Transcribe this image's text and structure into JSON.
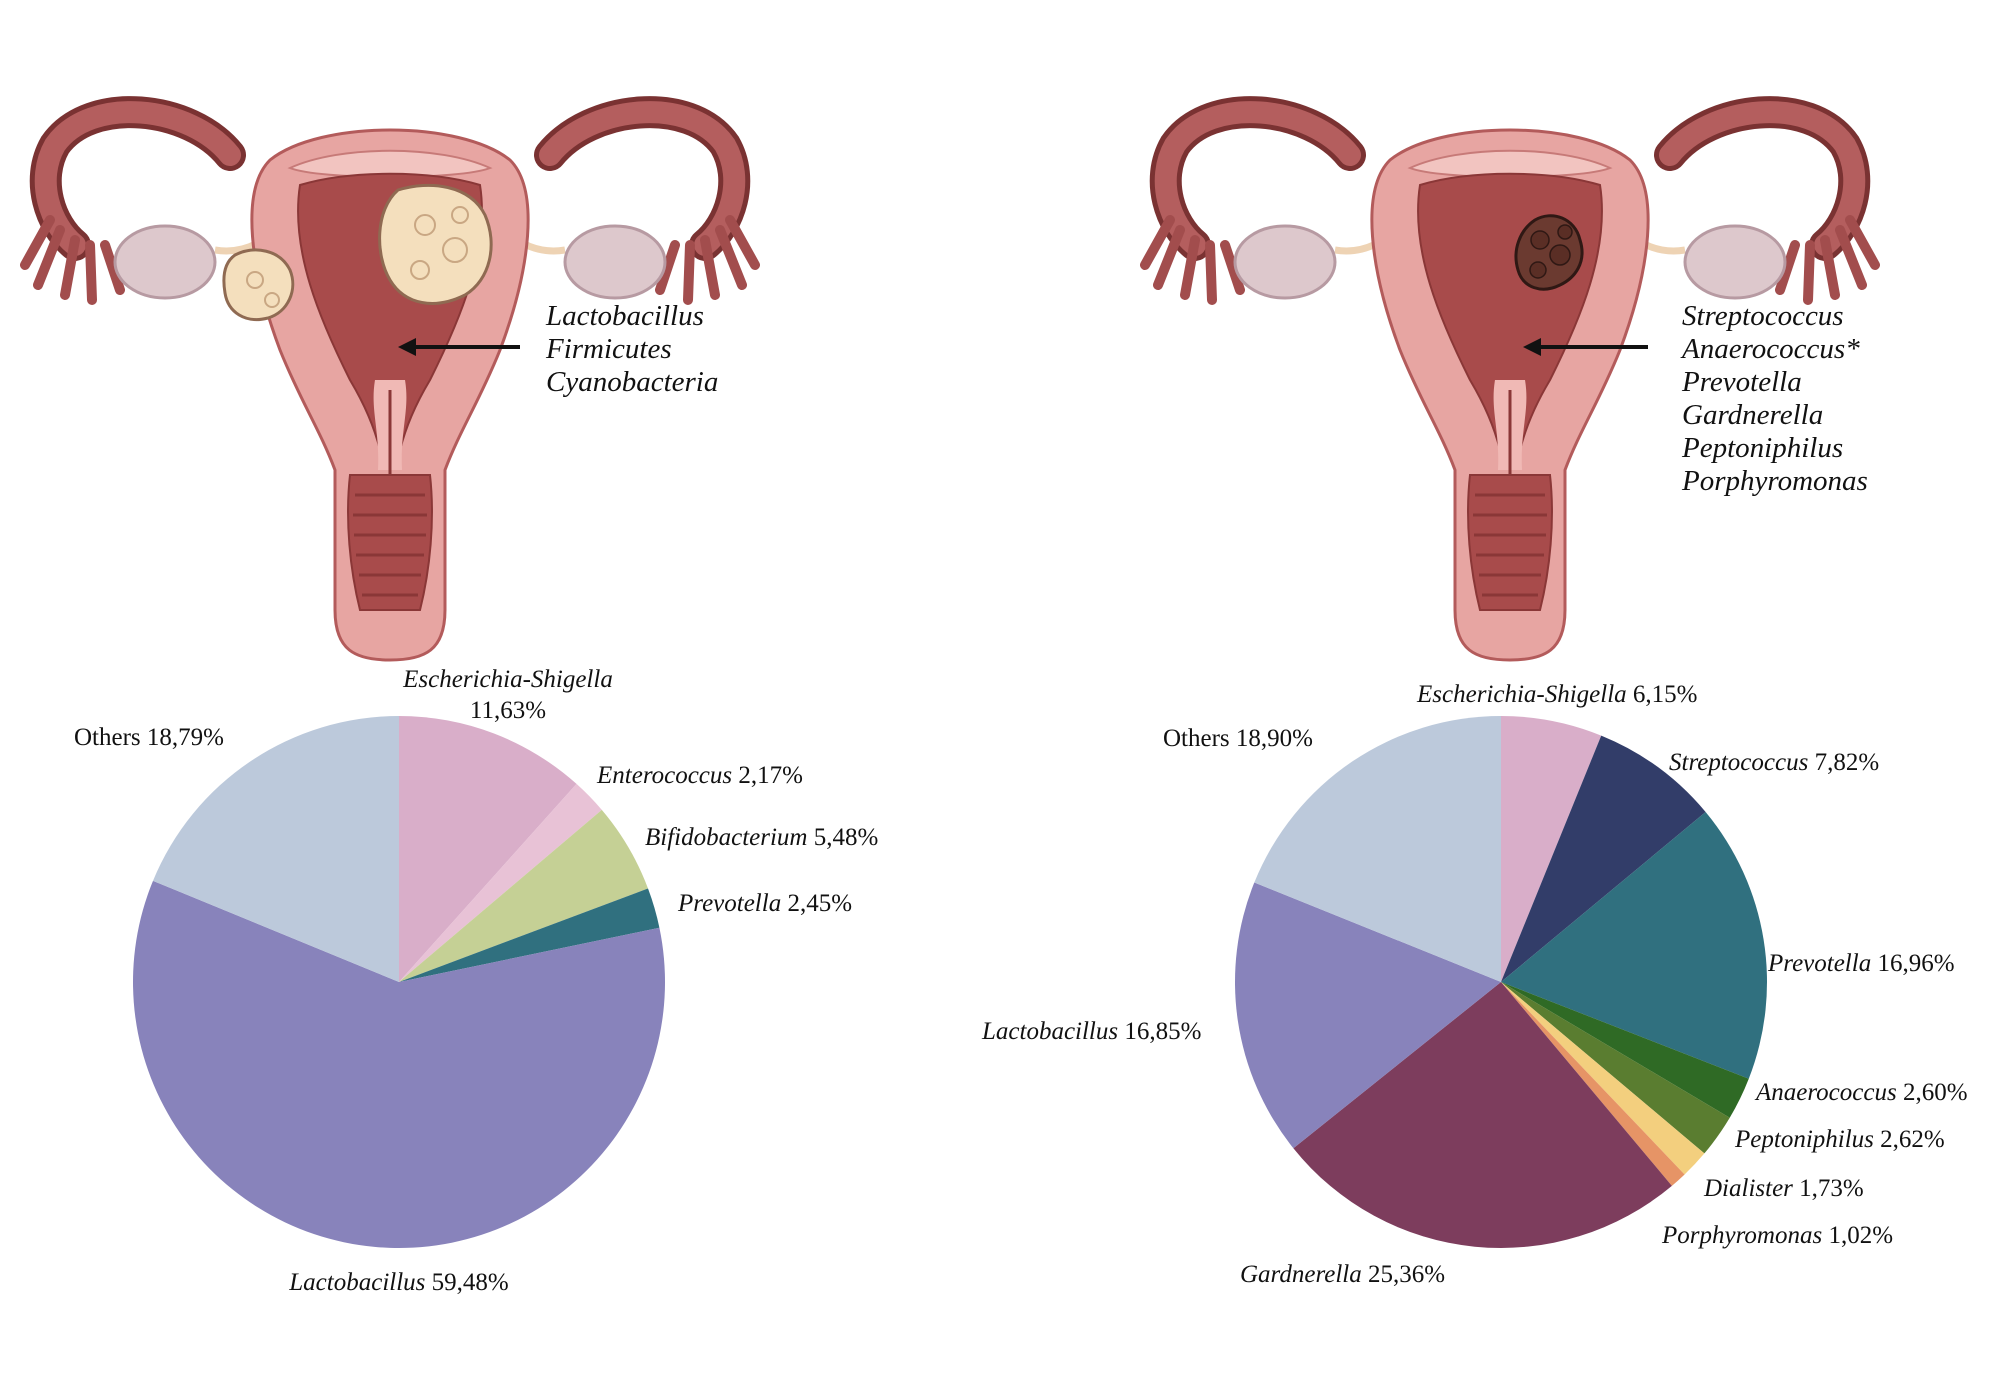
{
  "panels": [
    {
      "id": "left",
      "lesion": "fibroid",
      "bacteria": [
        "Lactobacillus",
        "Firmicutes",
        "Cyanobacteria"
      ]
    },
    {
      "id": "right",
      "lesion": "cancer",
      "bacteria": [
        "Streptococcus",
        "Anaerococcus*",
        "Prevotella",
        "Gardnerella",
        "Peptoniphilus",
        "Porphyromonas"
      ]
    }
  ],
  "chart_data": [
    {
      "type": "pie",
      "slices": [
        {
          "name": "Escherichia-Shigella",
          "value": 11.63,
          "label_italic": "Escherichia-Shigella",
          "label_value": "11,63%",
          "color": "#d9aec9"
        },
        {
          "name": "Enterococcus",
          "value": 2.17,
          "label_italic": "Enterococcus",
          "label_value": "2,17%",
          "color": "#e8c2d6"
        },
        {
          "name": "Bifidobacterium",
          "value": 5.48,
          "label_italic": "Bifidobacterium",
          "label_value": "5,48%",
          "color": "#c5d095"
        },
        {
          "name": "Prevotella",
          "value": 2.45,
          "label_italic": "Prevotella",
          "label_value": "2,45%",
          "color": "#30707f"
        },
        {
          "name": "Lactobacillus",
          "value": 59.48,
          "label_italic": "Lactobacillus",
          "label_value": "59,48%",
          "color": "#8883bb"
        },
        {
          "name": "Others",
          "value": 18.79,
          "label_italic": "",
          "label_value": "Others 18,79%",
          "color": "#bcc9db"
        }
      ]
    },
    {
      "type": "pie",
      "slices": [
        {
          "name": "Escherichia-Shigella",
          "value": 6.15,
          "label_italic": "Escherichia-Shigella",
          "label_value": "6,15%",
          "color": "#d9aec9"
        },
        {
          "name": "Streptococcus",
          "value": 7.82,
          "label_italic": "Streptococcus",
          "label_value": "7,82%",
          "color": "#323d69"
        },
        {
          "name": "Prevotella",
          "value": 16.96,
          "label_italic": "Prevotella",
          "label_value": "16,96%",
          "color": "#30707f"
        },
        {
          "name": "Anaerococcus",
          "value": 2.6,
          "label_italic": "Anaerococcus",
          "label_value": "2,60%",
          "color": "#2f6a25"
        },
        {
          "name": "Peptoniphilus",
          "value": 2.62,
          "label_italic": "Peptoniphilus",
          "label_value": "2,62%",
          "color": "#5a7d30"
        },
        {
          "name": "Dialister",
          "value": 1.73,
          "label_italic": "Dialister",
          "label_value": "1,73%",
          "color": "#f3cf7e"
        },
        {
          "name": "Porphyromonas",
          "value": 1.02,
          "label_italic": "Porphyromonas",
          "label_value": "1,02%",
          "color": "#e69466"
        },
        {
          "name": "Gardnerella",
          "value": 25.36,
          "label_italic": "Gardnerella",
          "label_value": "25,36%",
          "color": "#7d3d5d"
        },
        {
          "name": "Lactobacillus",
          "value": 16.85,
          "label_italic": "Lactobacillus",
          "label_value": "16,85%",
          "color": "#8883bb"
        },
        {
          "name": "Others",
          "value": 18.9,
          "label_italic": "",
          "label_value": "Others 18,90%",
          "color": "#bcc9db"
        }
      ]
    }
  ]
}
